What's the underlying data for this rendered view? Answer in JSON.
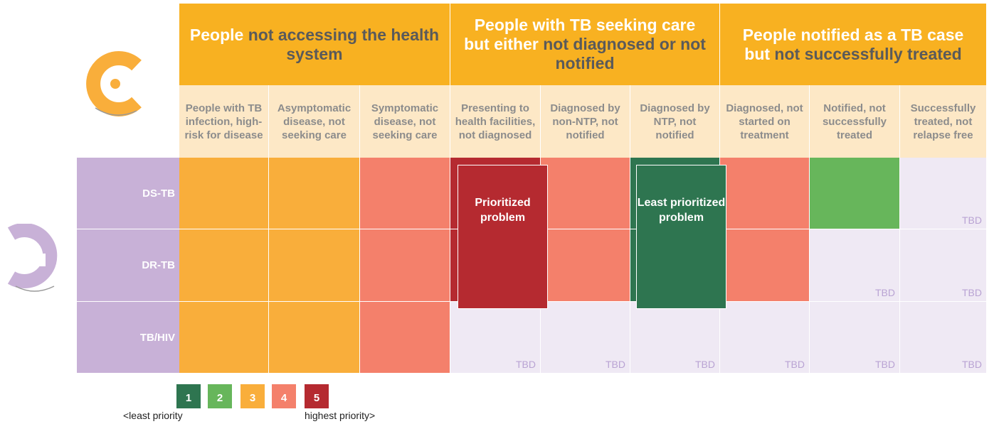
{
  "header": {
    "groups": [
      {
        "lead": "People",
        "rest": "not accessing the health system"
      },
      {
        "lead": "People with TB seeking care but either",
        "rest": "not diagnosed or not notified"
      },
      {
        "lead": "People notified as a TB case but",
        "rest": "not successfully treated"
      }
    ],
    "columns": [
      "People with TB infection, high-risk for disease",
      "Asymptomatic disease, not seeking care",
      "Symptomatic disease, not seeking care",
      "Presenting to health facilities, not diagnosed",
      "Diagnosed by non-NTP, not notified",
      "Diagnosed by NTP, not notified",
      "Diagnosed, not started on treatment",
      "Notified, not successfully treated",
      "Successfully treated, not relapse free"
    ]
  },
  "rows": [
    {
      "label": "DS-TB",
      "cells": [
        3,
        3,
        4,
        5,
        4,
        1,
        4,
        2,
        "TBD"
      ]
    },
    {
      "label": "DR-TB",
      "cells": [
        3,
        3,
        4,
        5,
        4,
        1,
        4,
        "TBD",
        "TBD"
      ]
    },
    {
      "label": "TB/HIV",
      "cells": [
        3,
        3,
        4,
        "TBD",
        "TBD",
        "TBD",
        "TBD",
        "TBD",
        "TBD"
      ]
    }
  ],
  "callouts": [
    {
      "text": "Prioritized problem",
      "level": 5
    },
    {
      "text": "Least prioritized problem",
      "level": 1
    }
  ],
  "legend": {
    "levels": [
      1,
      2,
      3,
      4,
      5
    ],
    "colors": [
      "#2e7550",
      "#67b65b",
      "#f9ae3b",
      "#f4806b",
      "#b52a30"
    ],
    "low": "<least priority",
    "high": "highest priority>"
  },
  "empty_color": "#efe9f4"
}
